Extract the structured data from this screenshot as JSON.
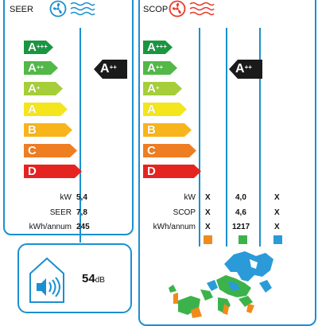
{
  "cooling": {
    "label": "SEER",
    "class_labels": [
      "A+++",
      "A++",
      "A+",
      "A",
      "B",
      "C",
      "D"
    ],
    "rating": "A++",
    "specs": [
      {
        "label": "kW",
        "value": "5,4"
      },
      {
        "label": "SEER",
        "value": "7,8"
      },
      {
        "label": "kWh/annum",
        "value": "245"
      }
    ]
  },
  "heating": {
    "label": "SCOP",
    "class_labels": [
      "A+++",
      "A++",
      "A+",
      "A",
      "B",
      "C",
      "D"
    ],
    "rating": "A++",
    "specs": [
      {
        "label": "kW",
        "col1": "X",
        "col2": "4,0",
        "col3": "X"
      },
      {
        "label": "SCOP",
        "col1": "X",
        "col2": "4,6",
        "col3": "X"
      },
      {
        "label": "kWh/annum",
        "col1": "X",
        "col2": "1217",
        "col3": "X"
      }
    ],
    "zone_colors": [
      "#f08a1c",
      "#3cb34a",
      "#2a9bd8"
    ]
  },
  "noise": {
    "value": "54",
    "unit": "dB"
  },
  "colors": {
    "frame": "#1c8fd0",
    "class_colors": [
      "#1a9641",
      "#52b847",
      "#a6ce39",
      "#f4e51d",
      "#f8b41b",
      "#ef7d22",
      "#e52421"
    ],
    "rating_arrow": "#1a1a1a"
  }
}
